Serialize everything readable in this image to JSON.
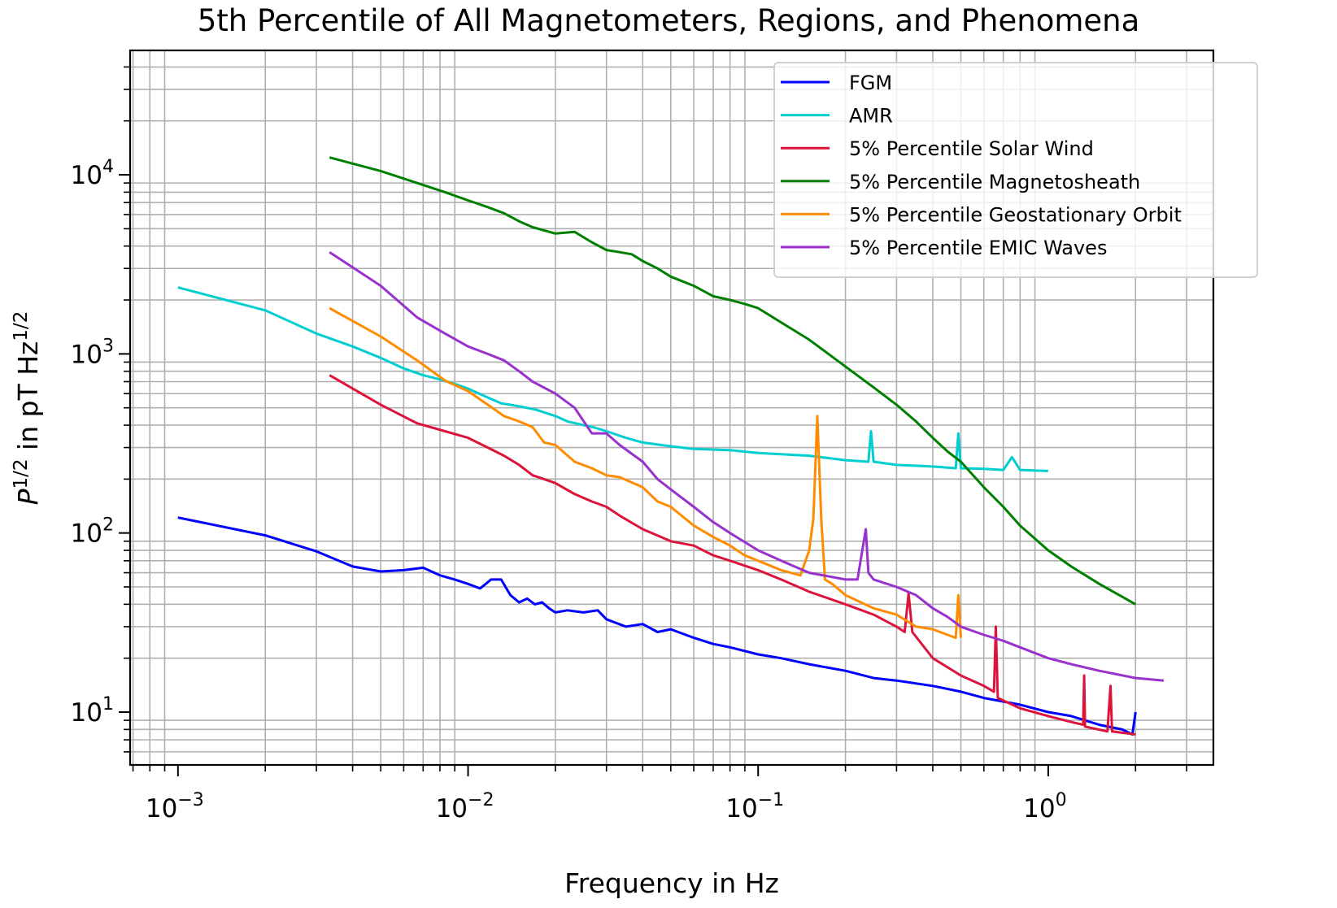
{
  "chart_data": {
    "type": "line",
    "title": "5th Percentile of All Magnetometers, Regions, and Phenomena",
    "xlabel": "Frequency in Hz",
    "ylabel": {
      "base": "P",
      "base_sup": "1/2",
      "middle": " in pT Hz",
      "end_sup": "1/2"
    },
    "xscale": "log",
    "yscale": "log",
    "xlim": [
      0.000684,
      3.71
    ],
    "ylim": [
      5.07,
      49500
    ],
    "grid": "minor",
    "legend_position": "top-right",
    "x_ticks": [
      {
        "value": 0.001,
        "base": "10",
        "exp": "−3"
      },
      {
        "value": 0.01,
        "base": "10",
        "exp": "−2"
      },
      {
        "value": 0.1,
        "base": "10",
        "exp": "−1"
      },
      {
        "value": 1,
        "base": "10",
        "exp": "0"
      }
    ],
    "y_ticks": [
      {
        "value": 10,
        "base": "10",
        "exp": "1"
      },
      {
        "value": 100,
        "base": "10",
        "exp": "2"
      },
      {
        "value": 1000,
        "base": "10",
        "exp": "3"
      },
      {
        "value": 10000,
        "base": "10",
        "exp": "4"
      }
    ],
    "series": [
      {
        "name": "FGM",
        "color": "#0000ff",
        "x": [
          0.001,
          0.002,
          0.003,
          0.004,
          0.005,
          0.006,
          0.007,
          0.008,
          0.009,
          0.01,
          0.011,
          0.012,
          0.013,
          0.014,
          0.015,
          0.016,
          0.017,
          0.018,
          0.019,
          0.02,
          0.022,
          0.025,
          0.028,
          0.03,
          0.035,
          0.04,
          0.045,
          0.05,
          0.06,
          0.07,
          0.08,
          0.1,
          0.12,
          0.15,
          0.2,
          0.25,
          0.3,
          0.4,
          0.5,
          0.6,
          0.8,
          1.0,
          1.2,
          1.5,
          1.8,
          1.95,
          2.0
        ],
        "y": [
          122,
          97,
          79,
          65,
          61,
          62,
          64,
          58,
          55,
          52,
          49,
          55,
          55,
          45,
          41,
          43,
          40,
          41,
          38,
          36,
          37,
          36,
          37,
          33,
          30,
          31,
          28,
          29,
          26,
          24,
          23,
          21,
          20,
          18.5,
          17,
          15.5,
          15,
          14,
          13,
          12,
          11,
          10,
          9.5,
          8.5,
          8,
          7.5,
          10
        ]
      },
      {
        "name": "AMR",
        "color": "#00ced1",
        "x": [
          0.001,
          0.002,
          0.003,
          0.004,
          0.005,
          0.006,
          0.007,
          0.008,
          0.009,
          0.01,
          0.012,
          0.013,
          0.015,
          0.017,
          0.02,
          0.022,
          0.025,
          0.027,
          0.03,
          0.035,
          0.04,
          0.05,
          0.06,
          0.08,
          0.1,
          0.15,
          0.2,
          0.24,
          0.245,
          0.25,
          0.3,
          0.4,
          0.48,
          0.49,
          0.5,
          0.6,
          0.7,
          0.75,
          0.8,
          1.0
        ],
        "y": [
          2350,
          1750,
          1300,
          1100,
          950,
          830,
          760,
          720,
          680,
          640,
          560,
          530,
          510,
          490,
          450,
          420,
          400,
          390,
          370,
          340,
          320,
          305,
          295,
          290,
          280,
          270,
          255,
          250,
          370,
          250,
          240,
          235,
          230,
          360,
          230,
          228,
          225,
          265,
          225,
          222
        ]
      },
      {
        "name": "5% Percentile Solar Wind",
        "color": "#dc143c",
        "x": [
          0.00333,
          0.005,
          0.00667,
          0.00833,
          0.01,
          0.0117,
          0.0133,
          0.015,
          0.0167,
          0.0183,
          0.02,
          0.0233,
          0.0267,
          0.03,
          0.0333,
          0.04,
          0.05,
          0.06,
          0.07,
          0.08,
          0.1,
          0.12,
          0.15,
          0.2,
          0.25,
          0.3,
          0.32,
          0.33,
          0.34,
          0.4,
          0.5,
          0.6,
          0.65,
          0.66,
          0.67,
          0.8,
          1.0,
          1.2,
          1.32,
          1.33,
          1.34,
          1.6,
          1.64,
          1.66,
          2.0
        ],
        "y": [
          760,
          520,
          410,
          370,
          340,
          300,
          270,
          240,
          210,
          200,
          190,
          165,
          150,
          140,
          125,
          105,
          90,
          85,
          75,
          70,
          62,
          55,
          47,
          40,
          35,
          30,
          28,
          46,
          28,
          20,
          16,
          14,
          13,
          30,
          12,
          10.5,
          9.5,
          8.8,
          8.5,
          16,
          8.3,
          7.8,
          14,
          7.8,
          7.5
        ]
      },
      {
        "name": "5% Percentile Magnetosheath",
        "color": "#008000",
        "x": [
          0.00333,
          0.005,
          0.00667,
          0.00833,
          0.01,
          0.0117,
          0.0133,
          0.015,
          0.0167,
          0.02,
          0.0233,
          0.0267,
          0.03,
          0.0333,
          0.0367,
          0.04,
          0.045,
          0.05,
          0.06,
          0.07,
          0.08,
          0.09,
          0.1,
          0.12,
          0.15,
          0.2,
          0.25,
          0.3,
          0.35,
          0.4,
          0.45,
          0.5,
          0.6,
          0.7,
          0.8,
          1.0,
          1.2,
          1.5,
          1.8,
          2.0
        ],
        "y": [
          12500,
          10500,
          9000,
          8000,
          7200,
          6600,
          6100,
          5500,
          5100,
          4700,
          4800,
          4200,
          3800,
          3700,
          3600,
          3300,
          3000,
          2700,
          2400,
          2100,
          2000,
          1900,
          1800,
          1500,
          1200,
          850,
          650,
          520,
          420,
          340,
          285,
          250,
          180,
          140,
          110,
          80,
          65,
          52,
          44,
          40
        ]
      },
      {
        "name": "5% Percentile Geostationary Orbit",
        "color": "#ff8c00",
        "x": [
          0.00333,
          0.005,
          0.00667,
          0.00833,
          0.01,
          0.0117,
          0.0133,
          0.015,
          0.0167,
          0.0183,
          0.02,
          0.0233,
          0.0267,
          0.03,
          0.0333,
          0.04,
          0.045,
          0.05,
          0.06,
          0.07,
          0.08,
          0.09,
          0.1,
          0.12,
          0.14,
          0.15,
          0.155,
          0.16,
          0.165,
          0.17,
          0.18,
          0.2,
          0.25,
          0.3,
          0.35,
          0.4,
          0.45,
          0.48,
          0.49,
          0.5
        ],
        "y": [
          1800,
          1250,
          920,
          710,
          620,
          520,
          450,
          420,
          390,
          320,
          310,
          250,
          230,
          210,
          205,
          180,
          150,
          140,
          110,
          95,
          85,
          75,
          70,
          62,
          58,
          80,
          120,
          450,
          120,
          55,
          52,
          45,
          38,
          35,
          30,
          29,
          27,
          26,
          45,
          26
        ]
      },
      {
        "name": "5% Percentile EMIC Waves",
        "color": "#9932cc",
        "x": [
          0.00333,
          0.005,
          0.00667,
          0.00833,
          0.01,
          0.0117,
          0.0133,
          0.015,
          0.0167,
          0.02,
          0.0233,
          0.0267,
          0.03,
          0.0333,
          0.04,
          0.045,
          0.05,
          0.06,
          0.07,
          0.08,
          0.1,
          0.12,
          0.15,
          0.2,
          0.22,
          0.235,
          0.24,
          0.25,
          0.3,
          0.35,
          0.4,
          0.45,
          0.5,
          0.6,
          0.7,
          0.8,
          1.0,
          1.2,
          1.5,
          2.0,
          2.5
        ],
        "y": [
          3700,
          2400,
          1600,
          1300,
          1100,
          1000,
          920,
          800,
          700,
          600,
          500,
          360,
          360,
          310,
          250,
          200,
          175,
          140,
          115,
          100,
          80,
          70,
          60,
          55,
          55,
          105,
          60,
          55,
          50,
          45,
          38,
          34,
          30,
          27,
          25,
          23,
          20,
          18.5,
          17,
          15.5,
          15
        ]
      }
    ]
  }
}
